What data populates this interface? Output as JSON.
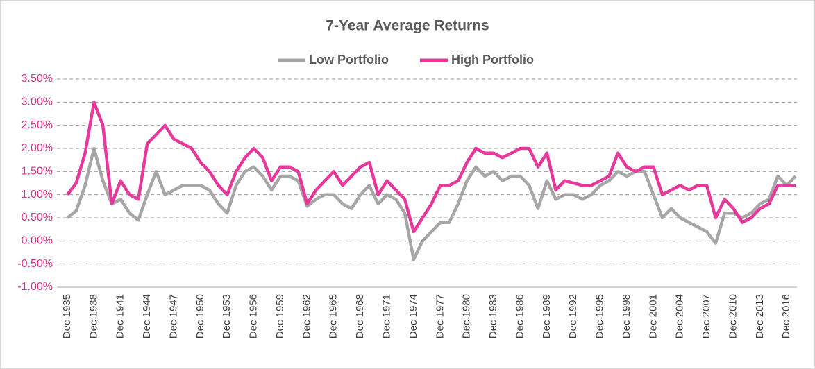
{
  "chart_data": {
    "type": "line",
    "title": "7-Year Average Returns",
    "categories": [
      "Dec 1935",
      null,
      null,
      "Dec 1938",
      null,
      null,
      "Dec 1941",
      null,
      null,
      "Dec 1944",
      null,
      null,
      "Dec 1947",
      null,
      null,
      "Dec 1950",
      null,
      null,
      "Dec 1953",
      null,
      null,
      "Dec 1956",
      null,
      null,
      "Dec 1959",
      null,
      null,
      "Dec 1962",
      null,
      null,
      "Dec 1965",
      null,
      null,
      "Dec 1968",
      null,
      null,
      "Dec 1971",
      null,
      null,
      "Dec 1974",
      null,
      null,
      "Dec 1977",
      null,
      null,
      "Dec 1980",
      null,
      null,
      "Dec 1983",
      null,
      null,
      "Dec 1986",
      null,
      null,
      "Dec 1989",
      null,
      null,
      "Dec 1992",
      null,
      null,
      "Dec 1995",
      null,
      null,
      "Dec 1998",
      null,
      null,
      "Dec 2001",
      null,
      null,
      "Dec 2004",
      null,
      null,
      "Dec 2007",
      null,
      null,
      "Dec 2010",
      null,
      null,
      "Dec 2013",
      null,
      null,
      "Dec 2016",
      null
    ],
    "series": [
      {
        "name": "Low Portfolio",
        "color": "#a6a6a6",
        "values": [
          0.5,
          0.65,
          1.2,
          2.0,
          1.3,
          0.8,
          0.9,
          0.6,
          0.45,
          1.0,
          1.5,
          1.0,
          1.1,
          1.2,
          1.2,
          1.2,
          1.1,
          0.8,
          0.6,
          1.2,
          1.5,
          1.6,
          1.4,
          1.1,
          1.4,
          1.4,
          1.3,
          0.75,
          0.9,
          1.0,
          1.0,
          0.8,
          0.7,
          1.0,
          1.2,
          0.8,
          1.0,
          0.9,
          0.6,
          -0.4,
          0.0,
          0.2,
          0.4,
          0.4,
          0.8,
          1.3,
          1.6,
          1.4,
          1.5,
          1.3,
          1.4,
          1.4,
          1.2,
          0.7,
          1.3,
          0.9,
          1.0,
          1.0,
          0.9,
          1.0,
          1.2,
          1.3,
          1.5,
          1.4,
          1.5,
          1.5,
          1.0,
          0.5,
          0.7,
          0.5,
          0.4,
          0.3,
          0.2,
          -0.05,
          0.6,
          0.6,
          0.5,
          0.6,
          0.8,
          0.9,
          1.4,
          1.2,
          1.4
        ]
      },
      {
        "name": "High Portfolio",
        "color": "#e6399b",
        "values": [
          1.0,
          1.25,
          1.9,
          3.0,
          2.5,
          0.8,
          1.3,
          1.0,
          0.9,
          2.1,
          2.3,
          2.5,
          2.2,
          2.1,
          2.0,
          1.7,
          1.5,
          1.2,
          1.0,
          1.5,
          1.8,
          2.0,
          1.8,
          1.3,
          1.6,
          1.6,
          1.5,
          0.8,
          1.1,
          1.3,
          1.5,
          1.2,
          1.4,
          1.6,
          1.7,
          1.0,
          1.3,
          1.1,
          0.9,
          0.2,
          0.5,
          0.8,
          1.2,
          1.2,
          1.3,
          1.7,
          2.0,
          1.9,
          1.9,
          1.8,
          1.9,
          2.0,
          2.0,
          1.6,
          1.9,
          1.1,
          1.3,
          1.25,
          1.2,
          1.2,
          1.3,
          1.4,
          1.9,
          1.6,
          1.5,
          1.6,
          1.6,
          1.0,
          1.1,
          1.2,
          1.1,
          1.2,
          1.2,
          0.5,
          0.9,
          0.7,
          0.4,
          0.5,
          0.7,
          0.8,
          1.2,
          1.2,
          1.2
        ]
      }
    ],
    "ylim": [
      -1,
      3.5
    ],
    "yticks": [
      {
        "value": -1,
        "label": "-1.00%"
      },
      {
        "value": -0.5,
        "label": "-0.50%"
      },
      {
        "value": 0,
        "label": "0.00%"
      },
      {
        "value": 0.5,
        "label": "0.50%"
      },
      {
        "value": 1,
        "label": "1.00%"
      },
      {
        "value": 1.5,
        "label": "1.50%"
      },
      {
        "value": 2,
        "label": "2.00%"
      },
      {
        "value": 2.5,
        "label": "2.50%"
      },
      {
        "value": 3,
        "label": "3.00%"
      },
      {
        "value": 3.5,
        "label": "3.50%"
      }
    ],
    "ytick_color": "#d6338a",
    "grid": true,
    "legend": "top"
  }
}
